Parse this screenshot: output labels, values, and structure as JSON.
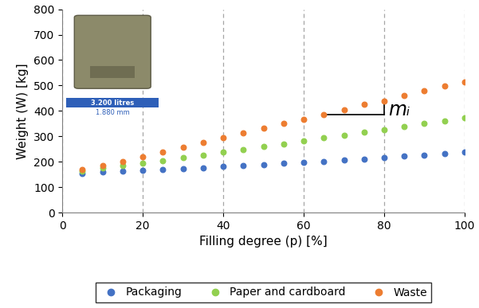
{
  "chart_data": {
    "type": "scatter",
    "x_label": "Filling degree (p) [%]",
    "y_label": "Weight (W) [kg]",
    "x": [
      5,
      10,
      15,
      20,
      25,
      30,
      35,
      40,
      45,
      50,
      55,
      60,
      65,
      70,
      75,
      80,
      85,
      90,
      95,
      100
    ],
    "series": [
      {
        "name": "Packaging",
        "color": "#4472c4",
        "marker": "circle",
        "values": [
          155,
          159,
          163,
          166,
          170,
          173,
          177,
          181,
          185,
          189,
          193,
          197,
          201,
          206,
          211,
          216,
          221,
          226,
          231,
          237
        ]
      },
      {
        "name": "Paper and cardboard",
        "color": "#92d050",
        "marker": "circle",
        "values": [
          163,
          175,
          185,
          195,
          205,
          215,
          225,
          238,
          248,
          260,
          270,
          282,
          295,
          305,
          315,
          325,
          338,
          350,
          360,
          373
        ]
      },
      {
        "name": "Waste",
        "color": "#ed7d31",
        "marker": "circle",
        "values": [
          168,
          185,
          202,
          220,
          238,
          257,
          275,
          295,
          313,
          332,
          350,
          368,
          385,
          405,
          425,
          440,
          460,
          478,
          498,
          515
        ]
      }
    ],
    "xlim": [
      0,
      100
    ],
    "xticks": [
      0,
      20,
      40,
      60,
      80,
      100
    ],
    "ylim": [
      0,
      800
    ],
    "yticks": [
      0,
      100,
      200,
      300,
      400,
      500,
      600,
      700,
      800
    ],
    "grid": "x",
    "legend": "lower center",
    "annotations": [
      "mᵢ"
    ],
    "image_texts": [
      "3.200 litres",
      "1.880 mm"
    ]
  }
}
